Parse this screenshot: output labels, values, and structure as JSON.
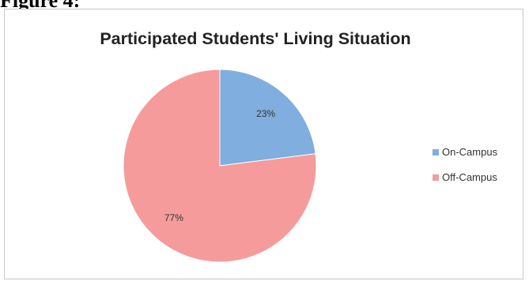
{
  "caption": "Figure 4:",
  "chart_data": {
    "type": "pie",
    "title": "Participated Students' Living Situation",
    "categories": [
      "On-Campus",
      "Off-Campus"
    ],
    "values": [
      23,
      77
    ],
    "data_labels": [
      "23%",
      "77%"
    ],
    "colors": [
      "#7faedf",
      "#f59b9b"
    ],
    "legend_position": "right"
  }
}
